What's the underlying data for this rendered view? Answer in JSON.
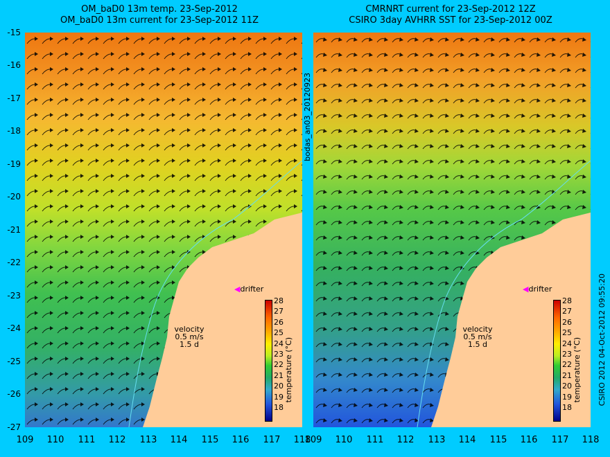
{
  "left_panel": {
    "title_line1": "OM_baD0 13m temp. 23-Sep-2012",
    "title_line2": "OM_baD0 13m current for 23-Sep-2012 11Z"
  },
  "right_panel": {
    "title_line1": "CMRNRT current for 23-Sep-2012 12Z",
    "title_line2": "CSIRO 3day AVHRR SST for 23-Sep-2012 00Z"
  },
  "axes": {
    "y_ticks": [
      "-15",
      "-16",
      "-17",
      "-18",
      "-19",
      "-20",
      "-21",
      "-22",
      "-23",
      "-24",
      "-25",
      "-26",
      "-27"
    ],
    "x_ticks": [
      "109",
      "110",
      "111",
      "112",
      "113",
      "114",
      "115",
      "116",
      "117",
      "118"
    ]
  },
  "side_label": "bodas_an03_20120923",
  "credit": "CSIRO 2012   04-Oct-2012 09:55:20",
  "velocity": {
    "label": "velocity",
    "speed": "0.5 m/s",
    "time": "1.5 d"
  },
  "drifter_label": "drifter",
  "colorbar": {
    "ticks": [
      "28",
      "27",
      "26",
      "25",
      "24",
      "23",
      "22",
      "21",
      "20",
      "19",
      "18"
    ],
    "label": "temperature (°C)"
  },
  "colors": {
    "background": "#00ccff",
    "land": "#ffcc99",
    "drifter": "#ff00ff"
  }
}
